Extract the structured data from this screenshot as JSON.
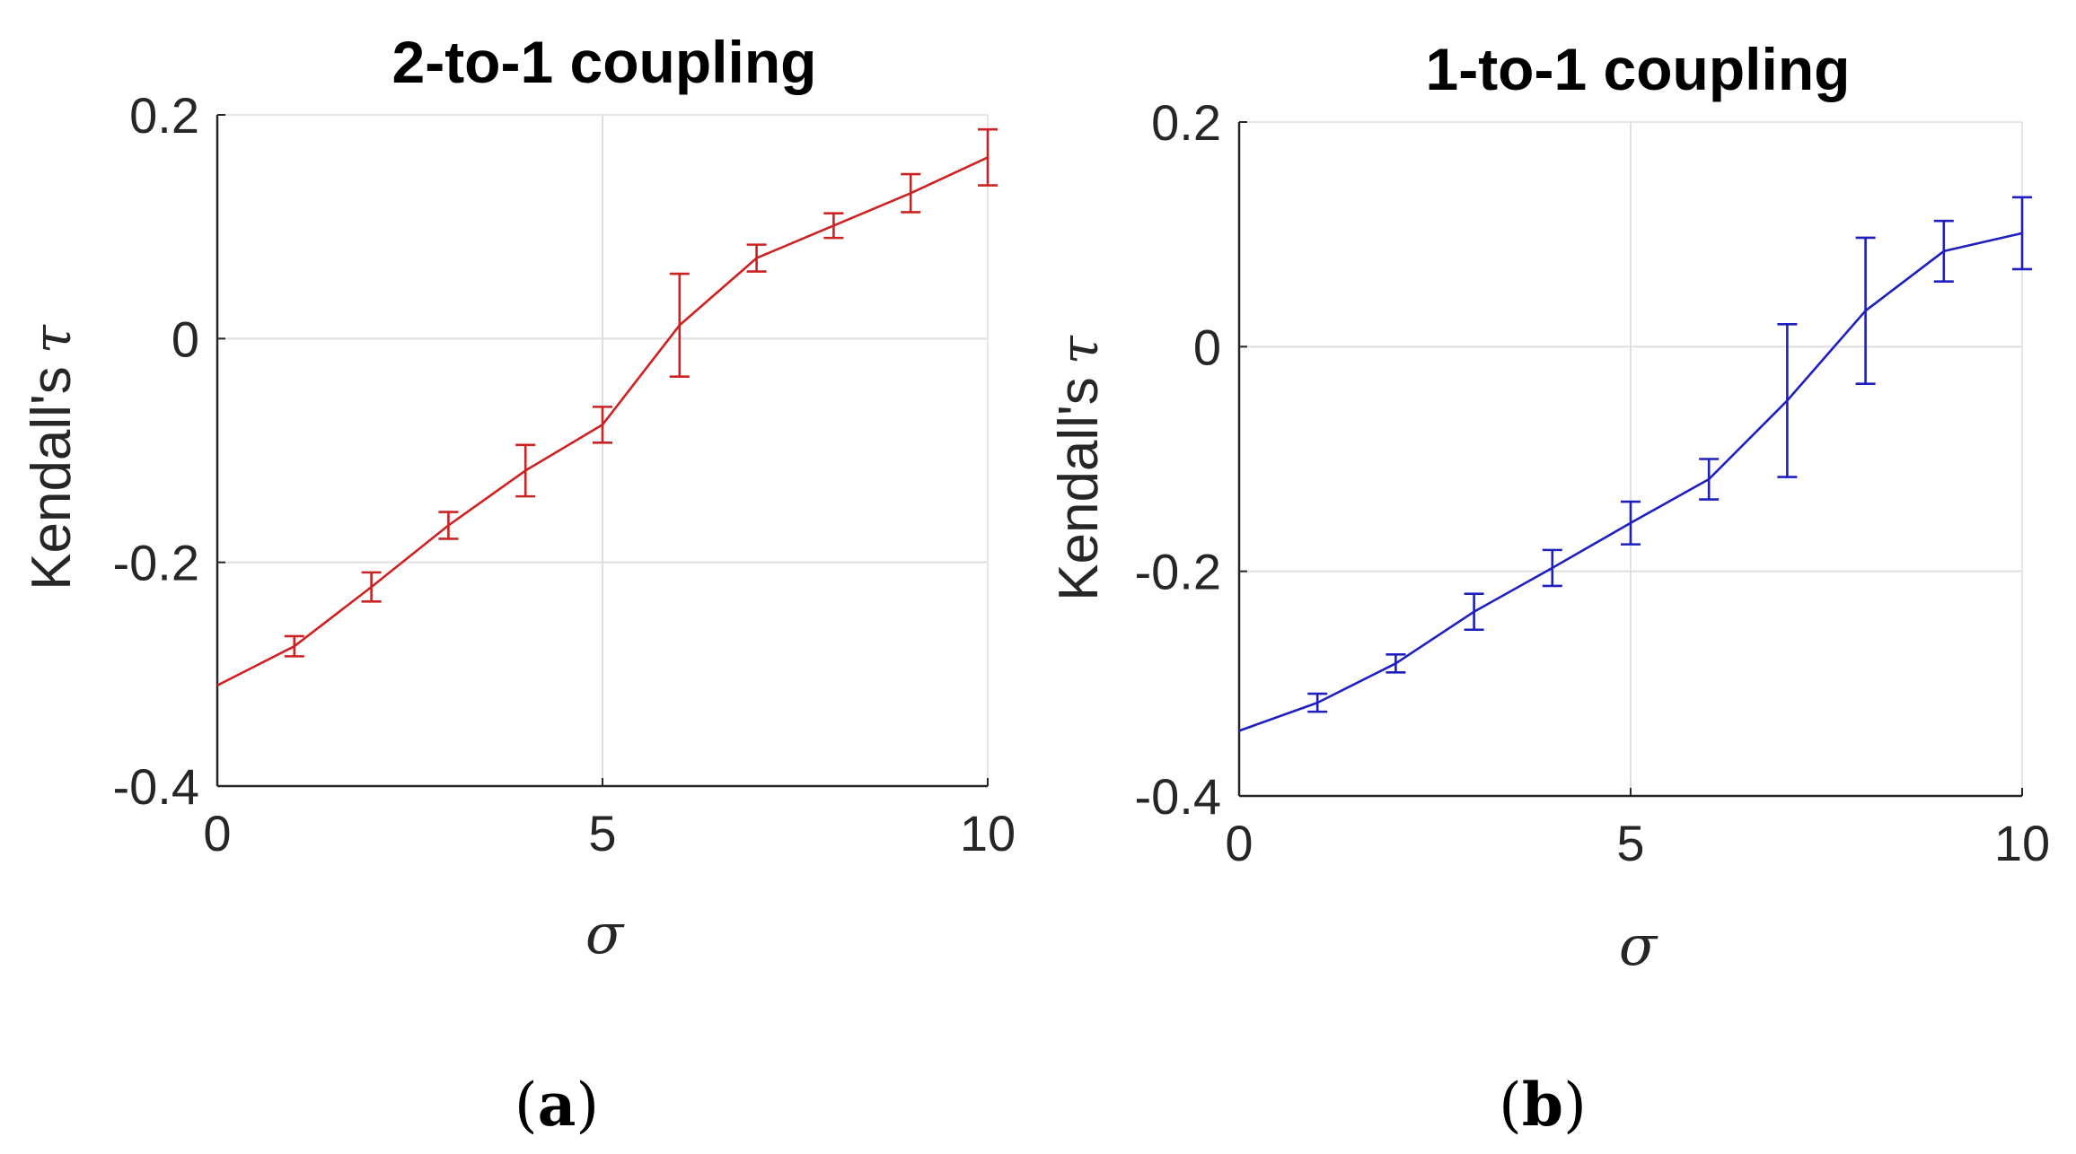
{
  "chart_data": [
    {
      "panel": "a",
      "type": "line",
      "title": "2-to-1 coupling",
      "xlabel": "σ",
      "ylabel": "Kendall's",
      "ylabel_symbol": "τ",
      "xlim": [
        0,
        10
      ],
      "ylim": [
        -0.4,
        0.2
      ],
      "xticks": [
        0,
        5,
        10
      ],
      "xtick_labels": [
        "0",
        "5",
        "10"
      ],
      "yticks": [
        -0.4,
        -0.2,
        0,
        0.2
      ],
      "ytick_labels": [
        "-0.4",
        "-0.2",
        "0",
        "0.2"
      ],
      "grid": true,
      "color": "#cc2222",
      "series": [
        {
          "name": "2-to-1 coupling",
          "x": [
            0,
            1,
            2,
            3,
            4,
            5,
            6,
            7,
            8,
            9,
            10
          ],
          "y": [
            -0.31,
            -0.275,
            -0.222,
            -0.167,
            -0.118,
            -0.077,
            0.012,
            0.072,
            0.101,
            0.13,
            0.162
          ],
          "err": [
            0.0,
            0.009,
            0.013,
            0.012,
            0.023,
            0.016,
            0.046,
            0.012,
            0.011,
            0.017,
            0.025
          ]
        }
      ]
    },
    {
      "panel": "b",
      "type": "line",
      "title": "1-to-1 coupling",
      "xlabel": "σ",
      "ylabel": "Kendall's",
      "ylabel_symbol": "τ",
      "xlim": [
        0,
        10
      ],
      "ylim": [
        -0.4,
        0.2
      ],
      "xticks": [
        0,
        5,
        10
      ],
      "xtick_labels": [
        "0",
        "5",
        "10"
      ],
      "yticks": [
        -0.4,
        -0.2,
        0,
        0.2
      ],
      "ytick_labels": [
        "-0.4",
        "-0.2",
        "0",
        "0.2"
      ],
      "grid": true,
      "color": "#1f1fbf",
      "series": [
        {
          "name": "1-to-1 coupling",
          "x": [
            0,
            1,
            2,
            3,
            4,
            5,
            6,
            7,
            8,
            9,
            10
          ],
          "y": [
            -0.342,
            -0.317,
            -0.282,
            -0.236,
            -0.197,
            -0.157,
            -0.118,
            -0.048,
            0.032,
            0.085,
            0.101
          ],
          "err": [
            0.0,
            0.008,
            0.008,
            0.016,
            0.016,
            0.019,
            0.018,
            0.068,
            0.065,
            0.027,
            0.032
          ]
        }
      ]
    }
  ],
  "panel_labels": {
    "a": "a",
    "b": "b"
  }
}
